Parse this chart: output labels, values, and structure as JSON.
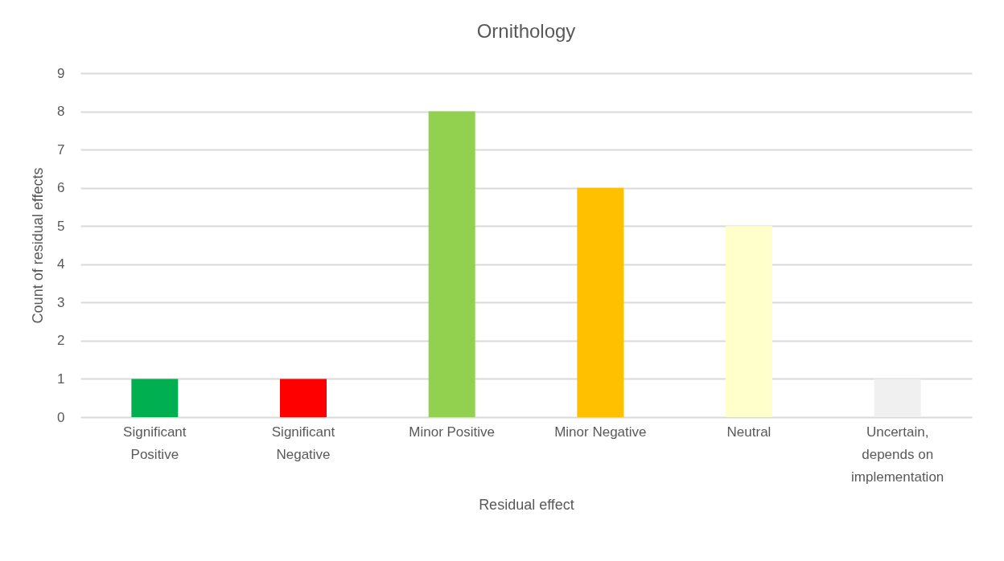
{
  "chart_data": {
    "type": "bar",
    "title": "Ornithology",
    "xlabel": "Residual effect",
    "ylabel": "Count of residual effects",
    "categories": [
      "Significant Positive",
      "Significant Negative",
      "Minor Positive",
      "Minor Negative",
      "Neutral",
      "Uncertain, depends on implementation"
    ],
    "values": [
      1,
      1,
      8,
      6,
      5,
      1
    ],
    "colors": [
      "#00b050",
      "#ff0000",
      "#92d050",
      "#ffc000",
      "#ffffcc",
      "#f0f0f0"
    ],
    "ylim": [
      0,
      9
    ],
    "yticks": [
      0,
      1,
      2,
      3,
      4,
      5,
      6,
      7,
      8,
      9
    ],
    "grid": "y",
    "legend": false
  }
}
